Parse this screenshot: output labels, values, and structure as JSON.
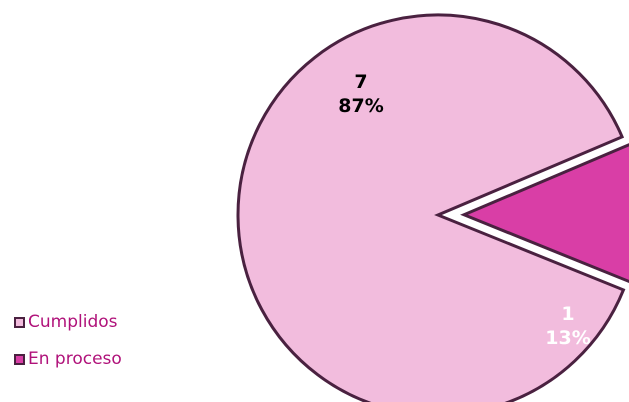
{
  "chart_data": {
    "type": "pie",
    "slices": [
      {
        "name": "Cumplidos",
        "value": 7,
        "percent_label": "87%",
        "color": "#f2bcdd"
      },
      {
        "name": "En proceso",
        "value": 1,
        "percent_label": "13%",
        "color": "#d93ea6"
      }
    ],
    "legend": {
      "placement": "bottom-left"
    }
  },
  "colors": {
    "outline": "#4a2140",
    "legend_text": "#b0127a",
    "label_dark": "#000000",
    "label_light": "#ffffff"
  }
}
